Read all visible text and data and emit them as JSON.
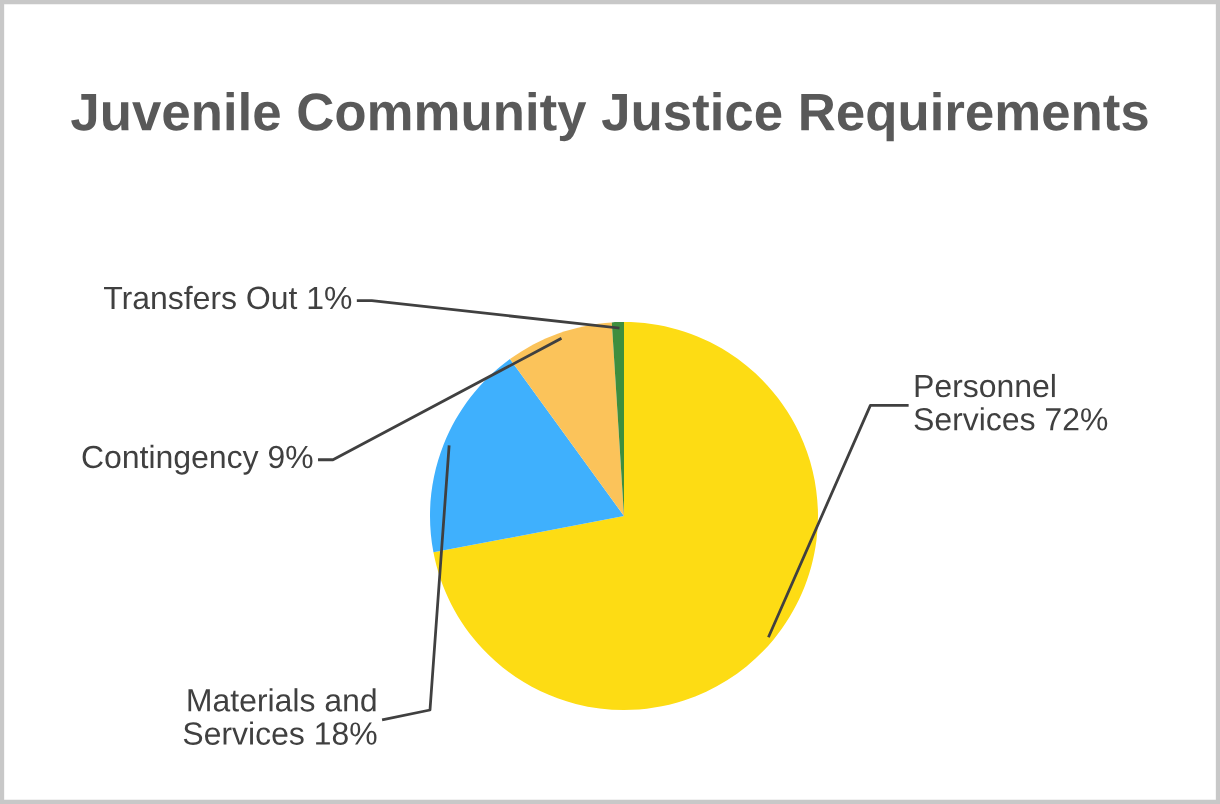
{
  "chart_data": {
    "type": "pie",
    "title": "Juvenile Community Justice Requirements",
    "categories": [
      "Personnel Services",
      "Materials and Services",
      "Contingency",
      "Transfers Out"
    ],
    "values": [
      72,
      18,
      9,
      1
    ],
    "colors": [
      "#fddc14",
      "#3fb0fd",
      "#fbc35a",
      "#3e8e3e"
    ],
    "value_labels": [
      "72%",
      "18%",
      "9%",
      "1%"
    ]
  }
}
